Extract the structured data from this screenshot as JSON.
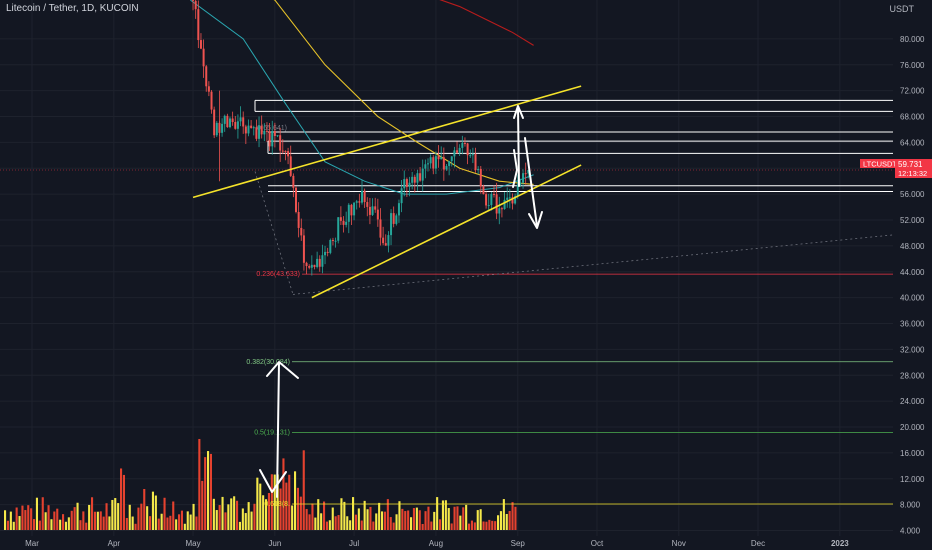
{
  "header": {
    "symbol_title": "Litecoin / Tether, 1D, KUCOIN",
    "price_unit": "USDT"
  },
  "price_badge": {
    "ticker": "LTCUSDT",
    "price": "59.731",
    "countdown": "12:13:32"
  },
  "colors": {
    "background": "#131722",
    "candle_up": "#26a69a",
    "candle_down": "#ef5350",
    "ma_fast": "#2aa6b0",
    "ma_mid": "#e6c229",
    "ma_slow": "#b71c1c",
    "channel": "#f5e32a",
    "volume_up": "#f5e94a",
    "volume_down": "#e5422f"
  },
  "chart_data": {
    "type": "candlestick",
    "title": "Litecoin / Tether, 1D, KUCOIN",
    "x_tick_labels": [
      "Mar",
      "Apr",
      "May",
      "Jun",
      "Jul",
      "Aug",
      "Sep",
      "Oct",
      "Nov",
      "Dec",
      "2023"
    ],
    "y_tick_labels": [
      "4.000",
      "8.000",
      "12.000",
      "16.000",
      "20.000",
      "24.000",
      "28.000",
      "32.000",
      "36.000",
      "40.000",
      "44.000",
      "48.000",
      "52.000",
      "56.000",
      "60.000",
      "64.000",
      "68.000",
      "72.000",
      "76.000",
      "80.000"
    ],
    "y_unit": "USDT",
    "ylim": [
      3.5,
      87
    ],
    "candles_approx": [
      {
        "date": "2022-05-01",
        "open": 98,
        "high": 100,
        "low": 84,
        "close": 86
      },
      {
        "date": "2022-05-09",
        "open": 86,
        "high": 88,
        "low": 58,
        "close": 66
      },
      {
        "date": "2022-05-15",
        "open": 66,
        "high": 72,
        "low": 62,
        "close": 68
      },
      {
        "date": "2022-05-25",
        "open": 68,
        "high": 69,
        "low": 64,
        "close": 66
      },
      {
        "date": "2022-06-05",
        "open": 66,
        "high": 68,
        "low": 62,
        "close": 63
      },
      {
        "date": "2022-06-13",
        "open": 63,
        "high": 63,
        "low": 41,
        "close": 44
      },
      {
        "date": "2022-06-18",
        "open": 44,
        "high": 47,
        "low": 40,
        "close": 46
      },
      {
        "date": "2022-06-25",
        "open": 46,
        "high": 52,
        "low": 45,
        "close": 51
      },
      {
        "date": "2022-07-05",
        "open": 51,
        "high": 58,
        "low": 50,
        "close": 56
      },
      {
        "date": "2022-07-13",
        "open": 56,
        "high": 57,
        "low": 48,
        "close": 49
      },
      {
        "date": "2022-07-20",
        "open": 49,
        "high": 60,
        "low": 48,
        "close": 58
      },
      {
        "date": "2022-07-28",
        "open": 58,
        "high": 62,
        "low": 54,
        "close": 60
      },
      {
        "date": "2022-08-08",
        "open": 60,
        "high": 64,
        "low": 58,
        "close": 62
      },
      {
        "date": "2022-08-14",
        "open": 62,
        "high": 65,
        "low": 60,
        "close": 63
      },
      {
        "date": "2022-08-20",
        "open": 63,
        "high": 63,
        "low": 53,
        "close": 55
      },
      {
        "date": "2022-08-28",
        "open": 55,
        "high": 56,
        "low": 52,
        "close": 54
      },
      {
        "date": "2022-09-05",
        "open": 54,
        "high": 61,
        "low": 53,
        "close": 59.731
      }
    ],
    "fibonacci_levels": [
      {
        "label": "0.236(43.633)",
        "value": 43.633
      },
      {
        "label": "0.382(30.084)",
        "value": 30.084
      },
      {
        "label": "0.5(19.131)",
        "value": 19.131
      },
      {
        "label": "0.618(8.",
        "value": 8.1
      }
    ],
    "fib_top_label": "0(65.641)",
    "horizontal_levels": [
      70.5,
      68.8,
      65.6,
      64.2,
      62.3,
      57.3,
      56.4
    ],
    "channel": {
      "upper": [
        {
          "date": "2022-05-01",
          "value": 55.5
        },
        {
          "date": "2022-09-25",
          "value": 72.7
        }
      ],
      "lower": [
        {
          "date": "2022-06-15",
          "value": 40
        },
        {
          "date": "2022-09-25",
          "value": 60.5
        }
      ]
    }
  }
}
